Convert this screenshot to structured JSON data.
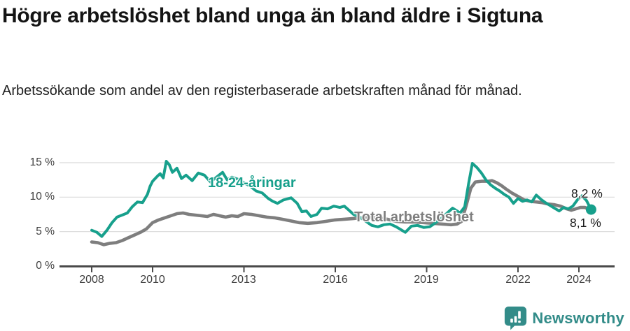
{
  "header": {
    "title": "Högre arbetslöshet bland unga än bland äldre i Sigtuna",
    "subtitle": "Arbetssökande som andel av den registerbaserade arbetskraften månad för månad."
  },
  "chart_data": {
    "type": "line",
    "title": "Högre arbetslöshet bland unga än bland äldre i Sigtuna",
    "subtitle": "Arbetssökande som andel av den registerbaserade arbetskraften månad för månad.",
    "grid": true,
    "legend_position": "inline-labels",
    "x_axis": {
      "tick_labels": [
        "2008",
        "2010",
        "2013",
        "2016",
        "2019",
        "2022",
        "2024"
      ],
      "tick_values": [
        2008,
        2010,
        2013,
        2016,
        2019,
        2022,
        2024
      ],
      "range": [
        2008,
        2024.4
      ]
    },
    "y_axis": {
      "tick_labels": [
        "15 %",
        "10 %",
        "5 %",
        "0 %"
      ],
      "tick_values": [
        15,
        10,
        5,
        0
      ],
      "grid_values": [
        5,
        10,
        15
      ],
      "range": [
        0,
        15
      ],
      "unit": "%"
    },
    "style": {
      "grid_color": "#d9d9d9",
      "axis_color": "#4a4a4a"
    },
    "series": [
      {
        "name": "18-24-åringar",
        "color": "#17a08c",
        "end_label": "8,2 %",
        "end_value": 8.2,
        "points": [
          [
            2008.0,
            5.2
          ],
          [
            2008.17,
            4.9
          ],
          [
            2008.33,
            4.3
          ],
          [
            2008.5,
            5.2
          ],
          [
            2008.67,
            6.3
          ],
          [
            2008.83,
            7.1
          ],
          [
            2009.0,
            7.4
          ],
          [
            2009.17,
            7.7
          ],
          [
            2009.33,
            8.6
          ],
          [
            2009.5,
            9.3
          ],
          [
            2009.67,
            9.2
          ],
          [
            2009.83,
            10.4
          ],
          [
            2009.92,
            11.6
          ],
          [
            2010.0,
            12.3
          ],
          [
            2010.17,
            13.1
          ],
          [
            2010.25,
            13.4
          ],
          [
            2010.35,
            12.8
          ],
          [
            2010.45,
            15.2
          ],
          [
            2010.55,
            14.7
          ],
          [
            2010.65,
            13.6
          ],
          [
            2010.8,
            14.2
          ],
          [
            2010.95,
            12.7
          ],
          [
            2011.1,
            13.2
          ],
          [
            2011.3,
            12.4
          ],
          [
            2011.5,
            13.5
          ],
          [
            2011.7,
            13.2
          ],
          [
            2011.9,
            12.2
          ],
          [
            2012.1,
            12.9
          ],
          [
            2012.3,
            13.6
          ],
          [
            2012.45,
            12.5
          ],
          [
            2012.6,
            12.9
          ],
          [
            2012.8,
            12.6
          ],
          [
            2013.0,
            12.1
          ],
          [
            2013.2,
            11.6
          ],
          [
            2013.4,
            10.9
          ],
          [
            2013.6,
            10.6
          ],
          [
            2013.8,
            9.8
          ],
          [
            2013.95,
            9.4
          ],
          [
            2014.1,
            9.1
          ],
          [
            2014.3,
            9.6
          ],
          [
            2014.55,
            9.9
          ],
          [
            2014.75,
            9.1
          ],
          [
            2014.9,
            7.9
          ],
          [
            2015.05,
            8.0
          ],
          [
            2015.2,
            7.2
          ],
          [
            2015.4,
            7.5
          ],
          [
            2015.55,
            8.4
          ],
          [
            2015.75,
            8.3
          ],
          [
            2015.95,
            8.7
          ],
          [
            2016.15,
            8.5
          ],
          [
            2016.3,
            8.7
          ],
          [
            2016.45,
            8.1
          ],
          [
            2016.6,
            7.5
          ],
          [
            2016.8,
            7.1
          ],
          [
            2017.0,
            6.5
          ],
          [
            2017.2,
            5.9
          ],
          [
            2017.4,
            5.7
          ],
          [
            2017.6,
            6.0
          ],
          [
            2017.8,
            6.1
          ],
          [
            2018.0,
            5.7
          ],
          [
            2018.3,
            4.9
          ],
          [
            2018.5,
            5.8
          ],
          [
            2018.7,
            5.9
          ],
          [
            2018.9,
            5.6
          ],
          [
            2019.1,
            5.7
          ],
          [
            2019.3,
            6.3
          ],
          [
            2019.5,
            7.0
          ],
          [
            2019.7,
            7.8
          ],
          [
            2019.85,
            8.4
          ],
          [
            2020.0,
            8.0
          ],
          [
            2020.1,
            7.7
          ],
          [
            2020.25,
            8.6
          ],
          [
            2020.38,
            12.0
          ],
          [
            2020.5,
            14.9
          ],
          [
            2020.65,
            14.3
          ],
          [
            2020.8,
            13.5
          ],
          [
            2020.95,
            12.5
          ],
          [
            2021.1,
            11.8
          ],
          [
            2021.25,
            11.3
          ],
          [
            2021.4,
            10.9
          ],
          [
            2021.55,
            10.4
          ],
          [
            2021.7,
            10.0
          ],
          [
            2021.85,
            9.1
          ],
          [
            2022.0,
            9.8
          ],
          [
            2022.15,
            9.4
          ],
          [
            2022.3,
            9.6
          ],
          [
            2022.45,
            9.3
          ],
          [
            2022.6,
            10.3
          ],
          [
            2022.75,
            9.7
          ],
          [
            2022.9,
            9.2
          ],
          [
            2023.05,
            8.8
          ],
          [
            2023.2,
            8.4
          ],
          [
            2023.35,
            8.0
          ],
          [
            2023.5,
            8.5
          ],
          [
            2023.65,
            8.3
          ],
          [
            2023.8,
            8.7
          ],
          [
            2023.95,
            9.6
          ],
          [
            2024.1,
            10.2
          ],
          [
            2024.25,
            9.5
          ],
          [
            2024.4,
            8.2
          ]
        ]
      },
      {
        "name": "Total arbetslöshet",
        "color": "#7e7e7e",
        "end_label": "8,1 %",
        "end_value": 8.1,
        "points": [
          [
            2008.0,
            3.5
          ],
          [
            2008.2,
            3.4
          ],
          [
            2008.4,
            3.1
          ],
          [
            2008.6,
            3.3
          ],
          [
            2008.8,
            3.4
          ],
          [
            2009.0,
            3.7
          ],
          [
            2009.2,
            4.1
          ],
          [
            2009.4,
            4.5
          ],
          [
            2009.6,
            4.9
          ],
          [
            2009.8,
            5.4
          ],
          [
            2010.0,
            6.3
          ],
          [
            2010.2,
            6.7
          ],
          [
            2010.4,
            7.0
          ],
          [
            2010.6,
            7.3
          ],
          [
            2010.8,
            7.6
          ],
          [
            2011.0,
            7.7
          ],
          [
            2011.2,
            7.5
          ],
          [
            2011.4,
            7.4
          ],
          [
            2011.6,
            7.3
          ],
          [
            2011.8,
            7.2
          ],
          [
            2012.0,
            7.5
          ],
          [
            2012.2,
            7.3
          ],
          [
            2012.4,
            7.1
          ],
          [
            2012.6,
            7.3
          ],
          [
            2012.8,
            7.2
          ],
          [
            2013.0,
            7.6
          ],
          [
            2013.25,
            7.5
          ],
          [
            2013.5,
            7.3
          ],
          [
            2013.75,
            7.1
          ],
          [
            2014.0,
            7.0
          ],
          [
            2014.25,
            6.8
          ],
          [
            2014.6,
            6.5
          ],
          [
            2014.8,
            6.3
          ],
          [
            2015.1,
            6.2
          ],
          [
            2015.4,
            6.3
          ],
          [
            2015.7,
            6.5
          ],
          [
            2016.0,
            6.7
          ],
          [
            2016.3,
            6.8
          ],
          [
            2016.6,
            6.9
          ],
          [
            2016.9,
            7.0
          ],
          [
            2017.1,
            7.1
          ],
          [
            2017.4,
            7.0
          ],
          [
            2017.7,
            6.8
          ],
          [
            2018.0,
            6.5
          ],
          [
            2018.3,
            6.4
          ],
          [
            2018.6,
            6.4
          ],
          [
            2018.9,
            6.3
          ],
          [
            2019.2,
            6.2
          ],
          [
            2019.5,
            6.1
          ],
          [
            2019.8,
            6.0
          ],
          [
            2020.0,
            6.1
          ],
          [
            2020.15,
            6.5
          ],
          [
            2020.3,
            8.8
          ],
          [
            2020.45,
            11.3
          ],
          [
            2020.6,
            12.2
          ],
          [
            2020.8,
            12.3
          ],
          [
            2021.0,
            12.3
          ],
          [
            2021.15,
            12.4
          ],
          [
            2021.3,
            12.1
          ],
          [
            2021.45,
            11.7
          ],
          [
            2021.6,
            11.2
          ],
          [
            2021.8,
            10.6
          ],
          [
            2022.0,
            10.1
          ],
          [
            2022.2,
            9.6
          ],
          [
            2022.4,
            9.4
          ],
          [
            2022.6,
            9.3
          ],
          [
            2022.8,
            9.2
          ],
          [
            2023.0,
            9.0
          ],
          [
            2023.2,
            8.9
          ],
          [
            2023.4,
            8.7
          ],
          [
            2023.6,
            8.3
          ],
          [
            2023.75,
            8.1
          ],
          [
            2023.9,
            8.3
          ],
          [
            2024.05,
            8.5
          ],
          [
            2024.2,
            8.5
          ],
          [
            2024.4,
            8.1
          ]
        ]
      }
    ]
  },
  "footer": {
    "brand": "Newsworthy",
    "brand_color": "#338c89"
  }
}
